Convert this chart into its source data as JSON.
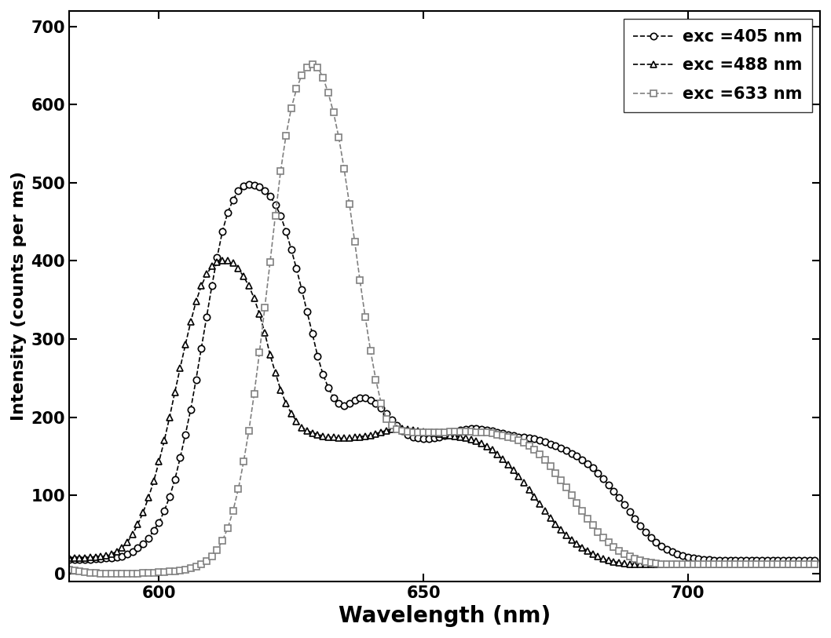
{
  "title": "",
  "xlabel": "Wavelength (nm)",
  "ylabel": "Intensity (counts per ms)",
  "xlim": [
    583,
    725
  ],
  "ylim": [
    -10,
    720
  ],
  "yticks": [
    0,
    100,
    200,
    300,
    400,
    500,
    600,
    700
  ],
  "xticks": [
    600,
    650,
    700
  ],
  "legend_labels": [
    "exc =405 nm",
    "exc =488 nm",
    "exc =633 nm"
  ],
  "line_colors": [
    "#000000",
    "#000000",
    "#808080"
  ],
  "line_styles": [
    "--",
    "--",
    "--"
  ],
  "markers": [
    "o",
    "^",
    "s"
  ],
  "marker_sizes": [
    6,
    6,
    6
  ],
  "series": {
    "exc405": {
      "x": [
        583,
        584,
        585,
        586,
        587,
        588,
        589,
        590,
        591,
        592,
        593,
        594,
        595,
        596,
        597,
        598,
        599,
        600,
        601,
        602,
        603,
        604,
        605,
        606,
        607,
        608,
        609,
        610,
        611,
        612,
        613,
        614,
        615,
        616,
        617,
        618,
        619,
        620,
        621,
        622,
        623,
        624,
        625,
        626,
        627,
        628,
        629,
        630,
        631,
        632,
        633,
        634,
        635,
        636,
        637,
        638,
        639,
        640,
        641,
        642,
        643,
        644,
        645,
        646,
        647,
        648,
        649,
        650,
        651,
        652,
        653,
        654,
        655,
        656,
        657,
        658,
        659,
        660,
        661,
        662,
        663,
        664,
        665,
        666,
        667,
        668,
        669,
        670,
        671,
        672,
        673,
        674,
        675,
        676,
        677,
        678,
        679,
        680,
        681,
        682,
        683,
        684,
        685,
        686,
        687,
        688,
        689,
        690,
        691,
        692,
        693,
        694,
        695,
        696,
        697,
        698,
        699,
        700,
        701,
        702,
        703,
        704,
        705,
        706,
        707,
        708,
        709,
        710,
        711,
        712,
        713,
        714,
        715,
        716,
        717,
        718,
        719,
        720,
        721,
        722,
        723,
        724
      ],
      "y": [
        18,
        18,
        18,
        18,
        18,
        19,
        19,
        20,
        20,
        21,
        22,
        25,
        28,
        33,
        38,
        45,
        55,
        65,
        80,
        98,
        120,
        148,
        178,
        210,
        248,
        288,
        328,
        368,
        405,
        438,
        462,
        478,
        490,
        496,
        498,
        497,
        495,
        490,
        483,
        472,
        458,
        438,
        415,
        390,
        363,
        335,
        307,
        278,
        255,
        238,
        225,
        218,
        215,
        218,
        222,
        225,
        225,
        222,
        218,
        212,
        205,
        197,
        190,
        183,
        178,
        175,
        173,
        172,
        172,
        173,
        175,
        177,
        180,
        182,
        184,
        185,
        186,
        186,
        185,
        184,
        183,
        181,
        180,
        178,
        177,
        175,
        174,
        173,
        172,
        170,
        168,
        165,
        163,
        160,
        157,
        153,
        150,
        145,
        140,
        135,
        128,
        121,
        113,
        105,
        97,
        88,
        79,
        70,
        61,
        53,
        46,
        40,
        35,
        31,
        28,
        25,
        23,
        21,
        20,
        19,
        18,
        18,
        17,
        17,
        17,
        17,
        17,
        17,
        17,
        17,
        17,
        17,
        17,
        17,
        17,
        17,
        17,
        17,
        17,
        17,
        17,
        17
      ]
    },
    "exc488": {
      "x": [
        583,
        584,
        585,
        586,
        587,
        588,
        589,
        590,
        591,
        592,
        593,
        594,
        595,
        596,
        597,
        598,
        599,
        600,
        601,
        602,
        603,
        604,
        605,
        606,
        607,
        608,
        609,
        610,
        611,
        612,
        613,
        614,
        615,
        616,
        617,
        618,
        619,
        620,
        621,
        622,
        623,
        624,
        625,
        626,
        627,
        628,
        629,
        630,
        631,
        632,
        633,
        634,
        635,
        636,
        637,
        638,
        639,
        640,
        641,
        642,
        643,
        644,
        645,
        646,
        647,
        648,
        649,
        650,
        651,
        652,
        653,
        654,
        655,
        656,
        657,
        658,
        659,
        660,
        661,
        662,
        663,
        664,
        665,
        666,
        667,
        668,
        669,
        670,
        671,
        672,
        673,
        674,
        675,
        676,
        677,
        678,
        679,
        680,
        681,
        682,
        683,
        684,
        685,
        686,
        687,
        688,
        689,
        690,
        691,
        692,
        693,
        694,
        695,
        696,
        697,
        698,
        699,
        700,
        701,
        702,
        703,
        704,
        705,
        706,
        707,
        708,
        709,
        710,
        711,
        712,
        713,
        714,
        715,
        716,
        717,
        718,
        719,
        720,
        721,
        722,
        723,
        724
      ],
      "y": [
        20,
        20,
        20,
        20,
        21,
        21,
        22,
        23,
        25,
        28,
        33,
        40,
        50,
        63,
        78,
        97,
        118,
        143,
        170,
        200,
        232,
        263,
        293,
        322,
        348,
        368,
        383,
        393,
        398,
        400,
        400,
        397,
        390,
        380,
        368,
        352,
        332,
        308,
        280,
        257,
        235,
        218,
        205,
        195,
        187,
        183,
        180,
        178,
        176,
        175,
        174,
        173,
        173,
        173,
        174,
        175,
        176,
        177,
        179,
        181,
        183,
        185,
        186,
        186,
        185,
        184,
        183,
        182,
        181,
        180,
        179,
        178,
        177,
        176,
        175,
        173,
        171,
        169,
        166,
        162,
        158,
        152,
        146,
        139,
        132,
        124,
        116,
        107,
        98,
        89,
        80,
        71,
        63,
        56,
        49,
        43,
        38,
        33,
        29,
        25,
        22,
        19,
        17,
        15,
        14,
        13,
        12,
        12,
        12,
        12,
        12,
        12,
        12,
        12,
        12,
        12,
        12,
        12,
        12,
        12,
        12,
        12,
        12,
        12,
        12,
        12,
        12,
        12,
        12,
        12,
        12,
        12,
        12,
        12,
        12,
        12,
        12,
        12,
        12,
        12,
        12,
        12
      ]
    },
    "exc633": {
      "x": [
        583,
        584,
        585,
        586,
        587,
        588,
        589,
        590,
        591,
        592,
        593,
        594,
        595,
        596,
        597,
        598,
        599,
        600,
        601,
        602,
        603,
        604,
        605,
        606,
        607,
        608,
        609,
        610,
        611,
        612,
        613,
        614,
        615,
        616,
        617,
        618,
        619,
        620,
        621,
        622,
        623,
        624,
        625,
        626,
        627,
        628,
        629,
        630,
        631,
        632,
        633,
        634,
        635,
        636,
        637,
        638,
        639,
        640,
        641,
        642,
        643,
        644,
        645,
        646,
        647,
        648,
        649,
        650,
        651,
        652,
        653,
        654,
        655,
        656,
        657,
        658,
        659,
        660,
        661,
        662,
        663,
        664,
        665,
        666,
        667,
        668,
        669,
        670,
        671,
        672,
        673,
        674,
        675,
        676,
        677,
        678,
        679,
        680,
        681,
        682,
        683,
        684,
        685,
        686,
        687,
        688,
        689,
        690,
        691,
        692,
        693,
        694,
        695,
        696,
        697,
        698,
        699,
        700,
        701,
        702,
        703,
        704,
        705,
        706,
        707,
        708,
        709,
        710,
        711,
        712,
        713,
        714,
        715,
        716,
        717,
        718,
        719,
        720,
        721,
        722,
        723,
        724
      ],
      "y": [
        5,
        4,
        3,
        2,
        1,
        1,
        0,
        0,
        0,
        0,
        0,
        0,
        0,
        0,
        1,
        1,
        1,
        2,
        2,
        3,
        3,
        4,
        5,
        7,
        9,
        12,
        16,
        22,
        30,
        42,
        58,
        80,
        108,
        143,
        183,
        230,
        283,
        340,
        398,
        458,
        515,
        560,
        595,
        620,
        638,
        648,
        652,
        648,
        635,
        615,
        590,
        558,
        518,
        473,
        425,
        375,
        328,
        285,
        248,
        218,
        198,
        190,
        185,
        183,
        182,
        181,
        181,
        181,
        181,
        181,
        181,
        181,
        182,
        182,
        182,
        182,
        182,
        181,
        181,
        181,
        180,
        178,
        177,
        175,
        173,
        170,
        167,
        163,
        158,
        152,
        145,
        137,
        128,
        119,
        110,
        100,
        90,
        80,
        70,
        62,
        53,
        46,
        40,
        34,
        29,
        25,
        22,
        19,
        17,
        15,
        14,
        13,
        12,
        12,
        12,
        12,
        12,
        12,
        12,
        12,
        12,
        12,
        12,
        12,
        12,
        12,
        12,
        12,
        12,
        12,
        12,
        12,
        12,
        12,
        12,
        12,
        12,
        12,
        12,
        12,
        12,
        12
      ]
    }
  }
}
